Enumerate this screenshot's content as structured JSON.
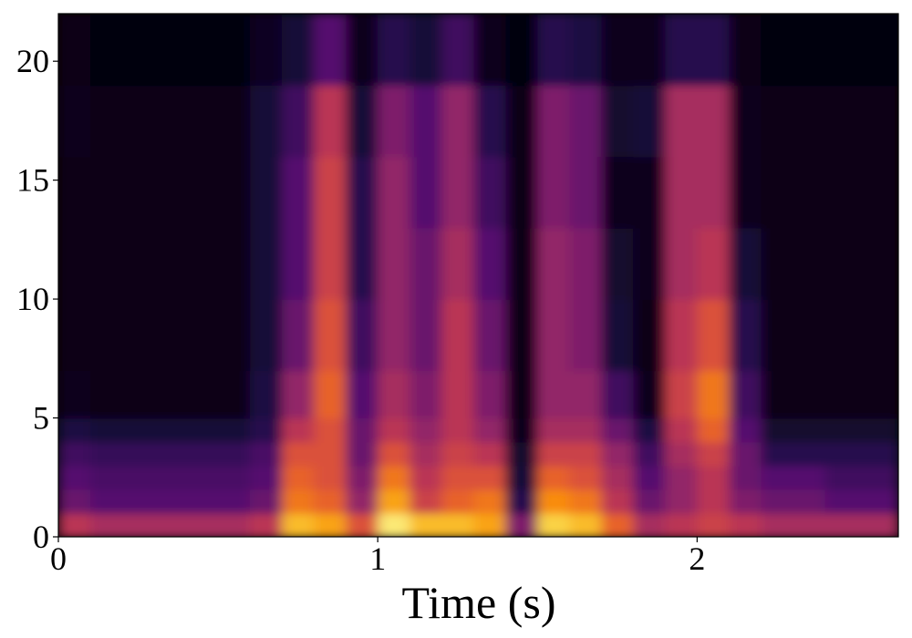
{
  "chart_data": {
    "type": "heatmap",
    "xlabel": "Time (s)",
    "colormap": "inferno",
    "xlim": [
      0,
      2.63
    ],
    "ylim": [
      0,
      22
    ],
    "xticks": [
      0,
      1,
      2
    ],
    "yticks": [
      0,
      5,
      10,
      15,
      20
    ],
    "xbins": [
      0,
      0.1,
      0.2,
      0.3,
      0.4,
      0.5,
      0.6,
      0.7,
      0.8,
      0.9,
      1.0,
      1.1,
      1.2,
      1.3,
      1.4,
      1.5,
      1.6,
      1.7,
      1.8,
      1.9,
      2.0,
      2.1,
      2.2,
      2.3,
      2.4,
      2.5,
      2.6,
      2.63
    ],
    "ybins": [
      0,
      1,
      2,
      3,
      4,
      5,
      7,
      10,
      13,
      16,
      19,
      22
    ],
    "z": [
      [
        0.5,
        0.45,
        0.45,
        0.45,
        0.45,
        0.45,
        0.5,
        0.85,
        0.8,
        0.6,
        0.95,
        0.85,
        0.85,
        0.8,
        0.35,
        0.9,
        0.85,
        0.65,
        0.45,
        0.5,
        0.55,
        0.5,
        0.45,
        0.45,
        0.45,
        0.45,
        0.45
      ],
      [
        0.3,
        0.25,
        0.25,
        0.25,
        0.25,
        0.25,
        0.3,
        0.7,
        0.65,
        0.4,
        0.8,
        0.55,
        0.65,
        0.7,
        0.15,
        0.75,
        0.7,
        0.5,
        0.3,
        0.4,
        0.5,
        0.35,
        0.3,
        0.3,
        0.25,
        0.25,
        0.25
      ],
      [
        0.25,
        0.22,
        0.22,
        0.22,
        0.22,
        0.22,
        0.25,
        0.65,
        0.6,
        0.35,
        0.7,
        0.5,
        0.6,
        0.6,
        0.1,
        0.65,
        0.6,
        0.45,
        0.25,
        0.4,
        0.5,
        0.3,
        0.25,
        0.25,
        0.2,
        0.2,
        0.2
      ],
      [
        0.2,
        0.18,
        0.18,
        0.18,
        0.18,
        0.18,
        0.22,
        0.6,
        0.6,
        0.3,
        0.6,
        0.45,
        0.55,
        0.5,
        0.08,
        0.55,
        0.55,
        0.4,
        0.2,
        0.45,
        0.55,
        0.3,
        0.15,
        0.15,
        0.15,
        0.15,
        0.15
      ],
      [
        0.12,
        0.1,
        0.1,
        0.1,
        0.1,
        0.1,
        0.15,
        0.5,
        0.6,
        0.3,
        0.5,
        0.4,
        0.5,
        0.4,
        0.05,
        0.45,
        0.45,
        0.3,
        0.12,
        0.5,
        0.65,
        0.25,
        0.08,
        0.08,
        0.08,
        0.08,
        0.08
      ],
      [
        0.05,
        0.04,
        0.04,
        0.04,
        0.04,
        0.04,
        0.12,
        0.4,
        0.65,
        0.25,
        0.45,
        0.35,
        0.5,
        0.35,
        0.03,
        0.4,
        0.4,
        0.2,
        0.05,
        0.55,
        0.7,
        0.2,
        0.04,
        0.04,
        0.04,
        0.04,
        0.04
      ],
      [
        0.04,
        0.03,
        0.03,
        0.03,
        0.03,
        0.03,
        0.1,
        0.3,
        0.6,
        0.2,
        0.4,
        0.3,
        0.5,
        0.3,
        0.03,
        0.4,
        0.35,
        0.1,
        0.03,
        0.5,
        0.6,
        0.15,
        0.03,
        0.03,
        0.03,
        0.03,
        0.03
      ],
      [
        0.04,
        0.03,
        0.03,
        0.03,
        0.03,
        0.03,
        0.1,
        0.25,
        0.55,
        0.15,
        0.4,
        0.3,
        0.45,
        0.25,
        0.03,
        0.4,
        0.35,
        0.08,
        0.05,
        0.45,
        0.5,
        0.1,
        0.03,
        0.03,
        0.03,
        0.03,
        0.03
      ],
      [
        0.04,
        0.03,
        0.03,
        0.03,
        0.03,
        0.03,
        0.1,
        0.25,
        0.55,
        0.15,
        0.4,
        0.25,
        0.4,
        0.2,
        0.03,
        0.35,
        0.3,
        0.05,
        0.05,
        0.45,
        0.45,
        0.05,
        0.03,
        0.03,
        0.03,
        0.03,
        0.03
      ],
      [
        0.05,
        0.03,
        0.03,
        0.03,
        0.03,
        0.03,
        0.1,
        0.2,
        0.5,
        0.1,
        0.35,
        0.25,
        0.4,
        0.15,
        0.03,
        0.35,
        0.3,
        0.08,
        0.1,
        0.45,
        0.45,
        0.05,
        0.03,
        0.03,
        0.03,
        0.03,
        0.03
      ],
      [
        0.04,
        0.02,
        0.02,
        0.02,
        0.02,
        0.02,
        0.06,
        0.1,
        0.25,
        0.05,
        0.15,
        0.1,
        0.2,
        0.05,
        0.02,
        0.15,
        0.12,
        0.05,
        0.05,
        0.15,
        0.15,
        0.03,
        0.02,
        0.02,
        0.02,
        0.02,
        0.02
      ]
    ]
  }
}
